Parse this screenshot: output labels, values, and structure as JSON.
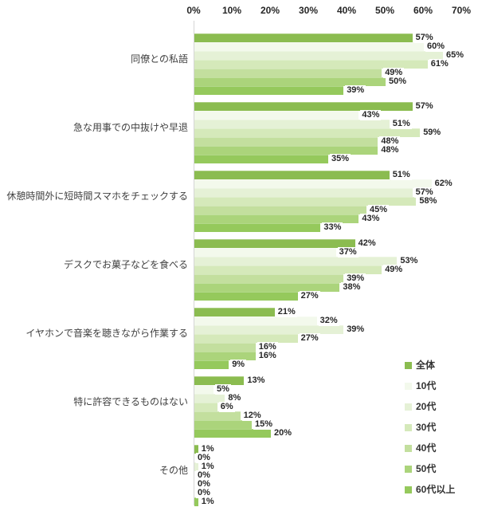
{
  "chart_data": {
    "type": "bar",
    "orientation": "horizontal",
    "value_suffix": "%",
    "x_axis": {
      "min": 0,
      "max": 70,
      "tick_step": 10,
      "tick_labels": [
        "0%",
        "10%",
        "20%",
        "30%",
        "40%",
        "50%",
        "60%",
        "70%"
      ],
      "position": "top"
    },
    "grid": "off",
    "legend_position": "bottom-right",
    "series": [
      {
        "name": "全体",
        "color": "#8BBC50"
      },
      {
        "name": "10代",
        "color": "#F3F9EC"
      },
      {
        "name": "20代",
        "color": "#E5F1D6"
      },
      {
        "name": "30代",
        "color": "#D5E9BA"
      },
      {
        "name": "40代",
        "color": "#C3DF9E"
      },
      {
        "name": "50代",
        "color": "#ABD47B"
      },
      {
        "name": "60代以上",
        "color": "#95C95C"
      }
    ],
    "categories": [
      "同僚との私語",
      "急な用事での中抜けや早退",
      "休憩時間外に短時間スマホをチェックする",
      "デスクでお菓子などを食べる",
      "イヤホンで音楽を聴きながら作業する",
      "特に許容できるものはない",
      "その他"
    ],
    "values": [
      [
        57,
        60,
        65,
        61,
        49,
        50,
        39
      ],
      [
        57,
        43,
        51,
        59,
        48,
        48,
        35
      ],
      [
        51,
        62,
        57,
        58,
        45,
        43,
        33
      ],
      [
        42,
        37,
        53,
        49,
        39,
        38,
        27
      ],
      [
        21,
        32,
        39,
        27,
        16,
        16,
        9
      ],
      [
        13,
        5,
        8,
        6,
        12,
        15,
        20
      ],
      [
        1,
        0,
        1,
        0,
        0,
        0,
        1
      ]
    ]
  },
  "colors": {
    "background": "#FFFFFF",
    "axis_line": "#D5D5D5",
    "tick_text": "#262626",
    "value_text": "#262626",
    "category_text": "#3F3F3F"
  }
}
